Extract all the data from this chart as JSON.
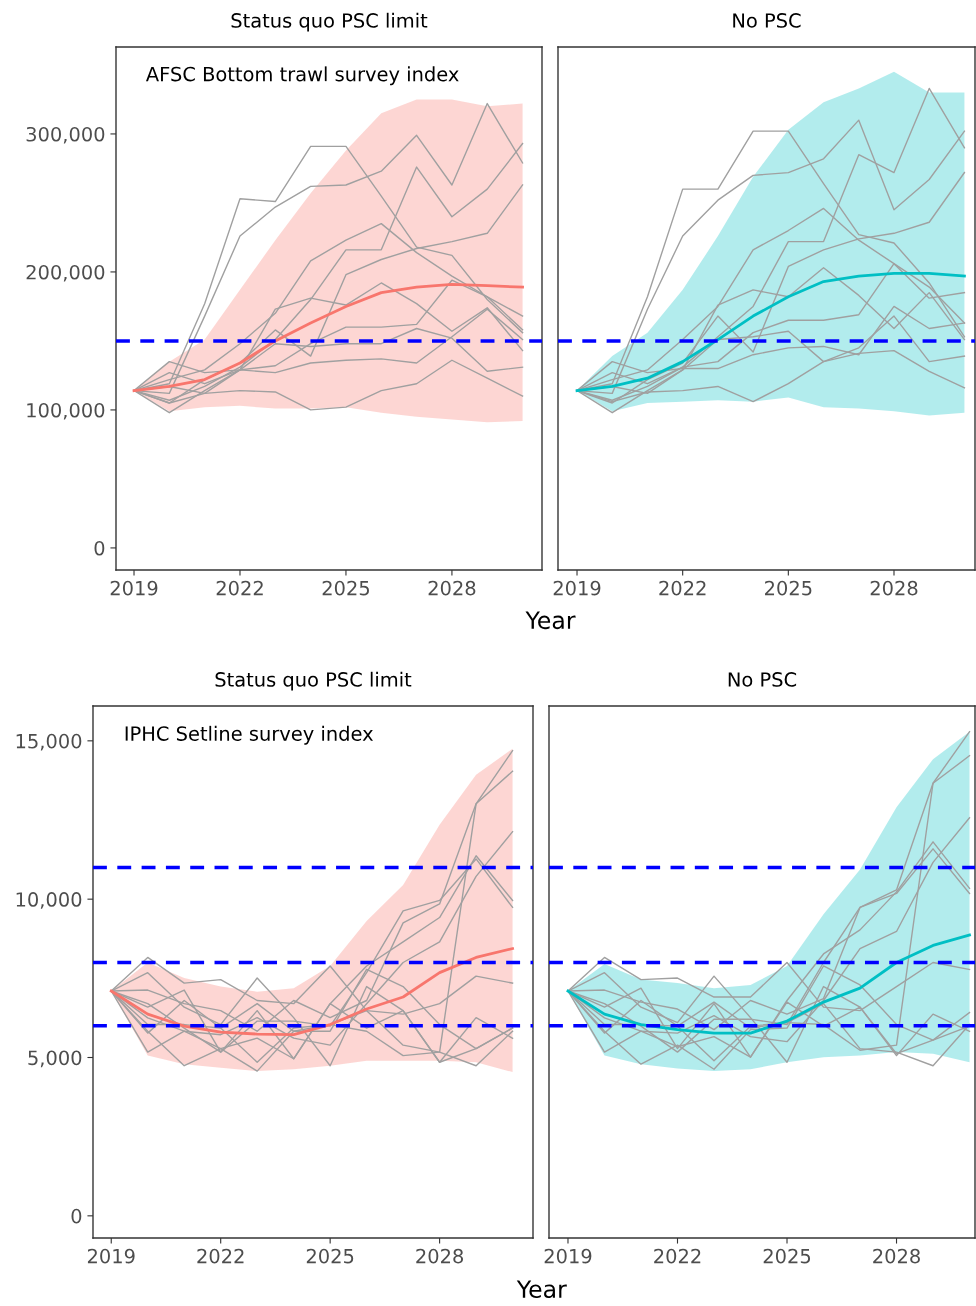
{
  "chart_data": [
    {
      "type": "line",
      "title": "Status quo PSC limit",
      "xlabel": "Year",
      "annotations": [
        "AFSC Bottom trawl survey index"
      ],
      "x": [
        2019,
        2020,
        2021,
        2022,
        2023,
        2024,
        2025,
        2026,
        2027,
        2028,
        2029,
        2030
      ],
      "xlim": [
        2018.49,
        2030.55
      ],
      "xticks": [
        2019,
        2022,
        2025,
        2028
      ],
      "ylim": [
        -16000,
        363000
      ],
      "yticks": [
        0,
        {
          "value": 100000,
          "label": "100,000"
        },
        {
          "value": 200000,
          "label": "200,000"
        },
        {
          "value": 300000,
          "label": "300,000"
        }
      ],
      "ref_lines": [
        {
          "axis": "y",
          "value": 150000,
          "label": null,
          "color": "#0000ff",
          "line_style": "dashed"
        }
      ],
      "series": [
        {
          "color": "#a0a0a0",
          "values": [
            114000,
            119000,
            177000,
            253000,
            251000,
            291000,
            291000,
            255000,
            218000,
            212000,
            180000,
            156000
          ]
        },
        {
          "color": "#a0a0a0",
          "values": [
            114000,
            112000,
            168000,
            226000,
            247000,
            262000,
            263000,
            273000,
            299000,
            263000,
            322000,
            279000
          ]
        },
        {
          "color": "#a0a0a0",
          "values": [
            114000,
            122000,
            129000,
            148000,
            170000,
            208000,
            223000,
            235000,
            214000,
            197000,
            182000,
            158000
          ]
        },
        {
          "color": "#a0a0a0",
          "values": [
            114000,
            107000,
            117000,
            131000,
            151000,
            180000,
            216000,
            216000,
            276000,
            240000,
            260000,
            293000
          ]
        },
        {
          "color": "#a0a0a0",
          "values": [
            114000,
            105000,
            122000,
            134000,
            158000,
            139000,
            198000,
            209000,
            217000,
            222000,
            228000,
            263000
          ]
        },
        {
          "color": "#a0a0a0",
          "values": [
            114000,
            117000,
            112000,
            129000,
            173000,
            181000,
            176000,
            192000,
            177000,
            157000,
            174000,
            143000
          ]
        },
        {
          "color": "#a0a0a0",
          "values": [
            114000,
            98000,
            114000,
            129000,
            148000,
            146000,
            148000,
            148000,
            159000,
            152000,
            128000,
            131000
          ]
        },
        {
          "color": "#a0a0a0",
          "values": [
            114000,
            105000,
            112000,
            114000,
            113000,
            100000,
            102000,
            114000,
            119000,
            136000,
            123000,
            110000
          ]
        },
        {
          "color": "#a0a0a0",
          "values": [
            114000,
            135000,
            127000,
            129000,
            127000,
            134000,
            136000,
            137000,
            134000,
            153000,
            173000,
            151000
          ]
        },
        {
          "color": "#a0a0a0",
          "values": [
            114000,
            127000,
            119000,
            129000,
            132000,
            148000,
            160000,
            160000,
            162000,
            194000,
            182000,
            168000
          ]
        },
        {
          "color": "#f8766d",
          "values": [
            114000,
            117000,
            122000,
            134000,
            150000,
            163000,
            175000,
            185000,
            189000,
            191000,
            190000,
            189000
          ],
          "lower": [
            114000,
            99000,
            102000,
            103000,
            101000,
            101000,
            102000,
            98000,
            95000,
            93000,
            91000,
            92000
          ],
          "upper": [
            114000,
            135000,
            151000,
            187000,
            223000,
            257000,
            288000,
            315000,
            325000,
            325000,
            320000,
            322000
          ]
        }
      ]
    },
    {
      "type": "line",
      "title": "No PSC",
      "tick_labels": "x",
      "x": [
        2019,
        2020,
        2021,
        2022,
        2023,
        2024,
        2025,
        2026,
        2027,
        2028,
        2029,
        2030
      ],
      "xlim": [
        2018.46,
        2030.3
      ],
      "xticks": [
        2019,
        2022,
        2025,
        2028
      ],
      "ylim": [
        -16000,
        363000
      ],
      "ref_lines": [
        {
          "axis": "y",
          "value": 150000,
          "label": null,
          "color": "#0000ff",
          "line_style": "dashed"
        }
      ],
      "series": [
        {
          "color": "#a0a0a0",
          "values": [
            114000,
            119000,
            182000,
            260000,
            260000,
            302000,
            302000,
            264000,
            227000,
            221000,
            192000,
            153000
          ]
        },
        {
          "color": "#a0a0a0",
          "values": [
            114000,
            112000,
            173000,
            226000,
            252000,
            270000,
            272000,
            282000,
            310000,
            245000,
            267000,
            302000
          ]
        },
        {
          "color": "#a0a0a0",
          "values": [
            114000,
            122000,
            129000,
            151000,
            175000,
            216000,
            230000,
            246000,
            223000,
            206000,
            189000,
            163000
          ]
        },
        {
          "color": "#a0a0a0",
          "values": [
            114000,
            107000,
            117000,
            131000,
            153000,
            175000,
            222000,
            222000,
            285000,
            272000,
            333000,
            290000
          ]
        },
        {
          "color": "#a0a0a0",
          "values": [
            114000,
            105000,
            122000,
            134000,
            168000,
            142000,
            204000,
            216000,
            224000,
            228000,
            236000,
            272000
          ]
        },
        {
          "color": "#a0a0a0",
          "values": [
            114000,
            117000,
            112000,
            129000,
            176000,
            187000,
            182000,
            203000,
            183000,
            159000,
            185000,
            151000
          ]
        },
        {
          "color": "#a0a0a0",
          "values": [
            114000,
            98000,
            114000,
            129000,
            151000,
            153000,
            157000,
            135000,
            145000,
            168000,
            135000,
            139000
          ]
        },
        {
          "color": "#a0a0a0",
          "values": [
            114000,
            106000,
            113000,
            114000,
            117000,
            106000,
            119000,
            135000,
            141000,
            143000,
            128000,
            116000
          ]
        },
        {
          "color": "#a0a0a0",
          "values": [
            114000,
            135000,
            127000,
            130000,
            130000,
            140000,
            145000,
            146000,
            140000,
            175000,
            159000,
            163000
          ]
        },
        {
          "color": "#a0a0a0",
          "values": [
            114000,
            127000,
            119000,
            131000,
            135000,
            156000,
            165000,
            165000,
            169000,
            206000,
            181000,
            185000
          ]
        },
        {
          "color": "#00bfc4",
          "values": [
            114000,
            117000,
            123000,
            135000,
            151000,
            168000,
            182000,
            193000,
            197000,
            199000,
            199000,
            197000
          ],
          "lower": [
            114000,
            99000,
            105000,
            106000,
            107000,
            106000,
            109000,
            102000,
            101000,
            99000,
            96000,
            98000
          ],
          "upper": [
            114000,
            139000,
            156000,
            187000,
            226000,
            269000,
            303000,
            323000,
            333000,
            345000,
            330000,
            330000
          ]
        }
      ]
    },
    {
      "type": "line",
      "title": "Status quo PSC limit",
      "xlabel": "Year",
      "annotations": [
        "IPHC Setline survey index"
      ],
      "x": [
        2019,
        2020,
        2021,
        2022,
        2023,
        2024,
        2025,
        2026,
        2027,
        2028,
        2029,
        2030
      ],
      "xlim": [
        2018.5,
        2030.56
      ],
      "xticks": [
        2019,
        2022,
        2025,
        2028
      ],
      "ylim": [
        -700,
        16100
      ],
      "yticks": [
        0,
        {
          "value": 5000,
          "label": "5,000"
        },
        {
          "value": 10000,
          "label": "10,000"
        },
        {
          "value": 15000,
          "label": "15,000"
        }
      ],
      "ref_lines": [
        {
          "axis": "y",
          "value": 11000,
          "label": null,
          "color": "#0000ff",
          "line_style": "dashed"
        },
        {
          "axis": "y",
          "value": 8000,
          "label": null,
          "color": "#0000ff",
          "line_style": "dashed"
        },
        {
          "axis": "y",
          "value": 6000,
          "label": null,
          "color": "#0000ff",
          "line_style": "dashed"
        }
      ],
      "series": [
        {
          "color": "#a0a0a0",
          "values": [
            7100,
            8160,
            7350,
            7460,
            6800,
            6700,
            7890,
            6480,
            6370,
            6700,
            7570,
            7350
          ]
        },
        {
          "color": "#a0a0a0",
          "values": [
            7100,
            7680,
            6590,
            6040,
            7510,
            6260,
            4740,
            7240,
            6480,
            4850,
            5280,
            5930
          ]
        },
        {
          "color": "#a0a0a0",
          "values": [
            7100,
            6590,
            7130,
            5170,
            6480,
            4960,
            6700,
            7890,
            8650,
            9420,
            11370,
            9960
          ]
        },
        {
          "color": "#a0a0a0",
          "values": [
            7100,
            5770,
            6800,
            5930,
            6700,
            5830,
            6040,
            5830,
            5060,
            5170,
            13010,
            14690
          ]
        },
        {
          "color": "#a0a0a0",
          "values": [
            7100,
            5170,
            5830,
            5720,
            6260,
            5610,
            5390,
            6700,
            8000,
            8650,
            10720,
            12130
          ]
        },
        {
          "color": "#a0a0a0",
          "values": [
            7100,
            5830,
            4740,
            5280,
            4570,
            5830,
            5830,
            7780,
            7240,
            6040,
            5280,
            5930
          ]
        },
        {
          "color": "#a0a0a0",
          "values": [
            7100,
            7130,
            6700,
            6480,
            5830,
            6800,
            6260,
            6800,
            9250,
            9850,
            13010,
            14040
          ]
        },
        {
          "color": "#a0a0a0",
          "values": [
            7100,
            6250,
            5830,
            5280,
            5610,
            4960,
            6700,
            5930,
            6480,
            4850,
            6260,
            5610
          ]
        },
        {
          "color": "#a0a0a0",
          "values": [
            7100,
            6700,
            5930,
            5170,
            6150,
            6150,
            5990,
            7680,
            9630,
            9960,
            11270,
            9740
          ]
        },
        {
          "color": "#a0a0a0",
          "values": [
            7100,
            6040,
            6040,
            5930,
            4850,
            5930,
            6040,
            6480,
            5390,
            5170,
            4740,
            5830
          ]
        },
        {
          "color": "#f8766d",
          "values": [
            7100,
            6370,
            5990,
            5800,
            5740,
            5720,
            6040,
            6530,
            6910,
            7680,
            8160,
            8440
          ],
          "lower": [
            7100,
            5060,
            4790,
            4680,
            4570,
            4630,
            4740,
            4900,
            4900,
            4900,
            4850,
            4540
          ],
          "upper": [
            7100,
            8000,
            7510,
            7240,
            7080,
            7190,
            7890,
            9310,
            10450,
            12350,
            13930,
            14750
          ]
        }
      ]
    },
    {
      "type": "line",
      "title": "No PSC",
      "tick_labels": "x",
      "x": [
        2019,
        2020,
        2021,
        2022,
        2023,
        2024,
        2025,
        2026,
        2027,
        2028,
        2029,
        2030
      ],
      "xlim": [
        2018.48,
        2030.15
      ],
      "xticks": [
        2019,
        2022,
        2025,
        2028
      ],
      "ylim": [
        -700,
        16100
      ],
      "ref_lines": [
        {
          "axis": "y",
          "value": 11000,
          "label": null,
          "color": "#0000ff",
          "line_style": "dashed"
        },
        {
          "axis": "y",
          "value": 8000,
          "label": null,
          "color": "#0000ff",
          "line_style": "dashed"
        },
        {
          "axis": "y",
          "value": 6000,
          "label": null,
          "color": "#0000ff",
          "line_style": "dashed"
        }
      ],
      "series": [
        {
          "color": "#a0a0a0",
          "values": [
            7100,
            8160,
            7460,
            7510,
            6910,
            6910,
            8000,
            6590,
            6480,
            7240,
            8000,
            7780
          ]
        },
        {
          "color": "#a0a0a0",
          "values": [
            7100,
            7680,
            6590,
            6100,
            7570,
            6260,
            4850,
            7240,
            6590,
            5120,
            5550,
            6420
          ]
        },
        {
          "color": "#a0a0a0",
          "values": [
            7100,
            6590,
            7190,
            5280,
            6700,
            5010,
            6800,
            8270,
            9030,
            10230,
            11810,
            10340
          ]
        },
        {
          "color": "#a0a0a0",
          "values": [
            7100,
            5770,
            6800,
            5990,
            6750,
            5930,
            6100,
            6040,
            5230,
            5390,
            13660,
            15290
          ]
        },
        {
          "color": "#a0a0a0",
          "values": [
            7100,
            5170,
            5830,
            5770,
            6320,
            5660,
            5500,
            6800,
            8440,
            8980,
            11160,
            12570
          ]
        },
        {
          "color": "#a0a0a0",
          "values": [
            7100,
            5830,
            4790,
            5390,
            4630,
            5880,
            5930,
            7890,
            7290,
            6040,
            5550,
            5990
          ]
        },
        {
          "color": "#a0a0a0",
          "values": [
            7100,
            7130,
            6750,
            6530,
            5880,
            6800,
            6370,
            6860,
            9740,
            10290,
            13660,
            14530
          ]
        },
        {
          "color": "#a0a0a0",
          "values": [
            7100,
            6250,
            5830,
            5340,
            5660,
            5010,
            6750,
            5990,
            6590,
            5060,
            6370,
            5830
          ]
        },
        {
          "color": "#a0a0a0",
          "values": [
            7100,
            6700,
            5990,
            5170,
            6210,
            6210,
            6040,
            8000,
            9740,
            10180,
            11590,
            10180
          ]
        },
        {
          "color": "#a0a0a0",
          "values": [
            7100,
            6040,
            6040,
            5990,
            4900,
            5990,
            6100,
            6700,
            5280,
            5170,
            4740,
            6040
          ]
        },
        {
          "color": "#00bfc4",
          "values": [
            7100,
            6370,
            6040,
            5880,
            5770,
            5770,
            6150,
            6750,
            7190,
            8000,
            8540,
            8870
          ],
          "lower": [
            7100,
            5060,
            4790,
            4650,
            4570,
            4630,
            4850,
            5010,
            5060,
            5170,
            5120,
            4850
          ],
          "upper": [
            7100,
            7950,
            7460,
            7350,
            7190,
            7290,
            7890,
            9520,
            10940,
            12900,
            14420,
            15290
          ]
        }
      ]
    }
  ]
}
